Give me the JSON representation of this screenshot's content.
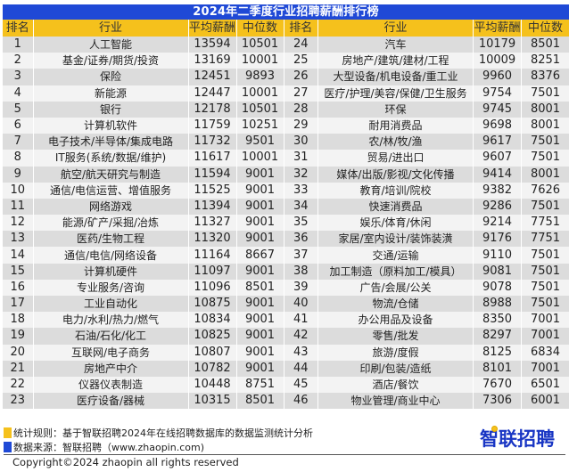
{
  "title": "2024年二季度行业招聘薪酬排行榜",
  "headers": {
    "rank": "排名",
    "industry": "行业",
    "avg_salary": "平均薪酬",
    "median": "中位数"
  },
  "colors": {
    "title_bg": "#1f49d6",
    "header_bg": "#f5c11c",
    "row_odd": "#dcdcdc",
    "row_even": "#f3f3f3",
    "logo": "#1936c4"
  },
  "left_rows": [
    {
      "rank": "1",
      "industry": "人工智能",
      "avg": "13594",
      "median": "10501"
    },
    {
      "rank": "2",
      "industry": "基金/证券/期货/投资",
      "avg": "13169",
      "median": "10001"
    },
    {
      "rank": "3",
      "industry": "保险",
      "avg": "12451",
      "median": "9893"
    },
    {
      "rank": "4",
      "industry": "新能源",
      "avg": "12447",
      "median": "10001"
    },
    {
      "rank": "5",
      "industry": "银行",
      "avg": "12178",
      "median": "10501"
    },
    {
      "rank": "6",
      "industry": "计算机软件",
      "avg": "11759",
      "median": "10251"
    },
    {
      "rank": "7",
      "industry": "电子技术/半导体/集成电路",
      "avg": "11732",
      "median": "9501"
    },
    {
      "rank": "8",
      "industry": "IT服务(系统/数据/维护)",
      "avg": "11617",
      "median": "10001"
    },
    {
      "rank": "9",
      "industry": "航空/航天研究与制造",
      "avg": "11594",
      "median": "9001"
    },
    {
      "rank": "10",
      "industry": "通信/电信运营、增值服务",
      "avg": "11525",
      "median": "9001"
    },
    {
      "rank": "11",
      "industry": "网络游戏",
      "avg": "11394",
      "median": "9001"
    },
    {
      "rank": "12",
      "industry": "能源/矿产/采掘/冶炼",
      "avg": "11327",
      "median": "9001"
    },
    {
      "rank": "13",
      "industry": "医药/生物工程",
      "avg": "11320",
      "median": "9001"
    },
    {
      "rank": "14",
      "industry": "通信/电信/网络设备",
      "avg": "11164",
      "median": "8667"
    },
    {
      "rank": "15",
      "industry": "计算机硬件",
      "avg": "11097",
      "median": "9001"
    },
    {
      "rank": "16",
      "industry": "专业服务/咨询",
      "avg": "11096",
      "median": "8501"
    },
    {
      "rank": "17",
      "industry": "工业自动化",
      "avg": "10875",
      "median": "9001"
    },
    {
      "rank": "18",
      "industry": "电力/水利/热力/燃气",
      "avg": "10834",
      "median": "9001"
    },
    {
      "rank": "19",
      "industry": "石油/石化/化工",
      "avg": "10825",
      "median": "9001"
    },
    {
      "rank": "20",
      "industry": "互联网/电子商务",
      "avg": "10807",
      "median": "9001"
    },
    {
      "rank": "21",
      "industry": "房地产中介",
      "avg": "10782",
      "median": "9001"
    },
    {
      "rank": "22",
      "industry": "仪器仪表制造",
      "avg": "10448",
      "median": "8751"
    },
    {
      "rank": "23",
      "industry": "医疗设备/器械",
      "avg": "10315",
      "median": "8501"
    }
  ],
  "right_rows": [
    {
      "rank": "24",
      "industry": "汽车",
      "avg": "10179",
      "median": "8501"
    },
    {
      "rank": "25",
      "industry": "房地产/建筑/建材/工程",
      "avg": "10009",
      "median": "8251"
    },
    {
      "rank": "26",
      "industry": "大型设备/机电设备/重工业",
      "avg": "9960",
      "median": "8376"
    },
    {
      "rank": "27",
      "industry": "医疗/护理/美容/保健/卫生服务",
      "avg": "9754",
      "median": "7501"
    },
    {
      "rank": "28",
      "industry": "环保",
      "avg": "9745",
      "median": "8001"
    },
    {
      "rank": "29",
      "industry": "耐用消费品",
      "avg": "9698",
      "median": "8001"
    },
    {
      "rank": "30",
      "industry": "农/林/牧/渔",
      "avg": "9617",
      "median": "7501"
    },
    {
      "rank": "31",
      "industry": "贸易/进出口",
      "avg": "9607",
      "median": "7501"
    },
    {
      "rank": "32",
      "industry": "媒体/出版/影视/文化传播",
      "avg": "9414",
      "median": "8001"
    },
    {
      "rank": "33",
      "industry": "教育/培训/院校",
      "avg": "9382",
      "median": "7626"
    },
    {
      "rank": "34",
      "industry": "快速消费品",
      "avg": "9286",
      "median": "7501"
    },
    {
      "rank": "35",
      "industry": "娱乐/体育/休闲",
      "avg": "9214",
      "median": "7751"
    },
    {
      "rank": "36",
      "industry": "家居/室内设计/装饰装潢",
      "avg": "9176",
      "median": "7751"
    },
    {
      "rank": "37",
      "industry": "交通/运输",
      "avg": "9110",
      "median": "7501"
    },
    {
      "rank": "38",
      "industry": "加工制造（原料加工/模具）",
      "avg": "9081",
      "median": "7501"
    },
    {
      "rank": "39",
      "industry": "广告/会展/公关",
      "avg": "9078",
      "median": "7501"
    },
    {
      "rank": "40",
      "industry": "物流/仓储",
      "avg": "8988",
      "median": "7501"
    },
    {
      "rank": "41",
      "industry": "办公用品及设备",
      "avg": "8350",
      "median": "7001"
    },
    {
      "rank": "42",
      "industry": "零售/批发",
      "avg": "8297",
      "median": "7001"
    },
    {
      "rank": "43",
      "industry": "旅游/度假",
      "avg": "8125",
      "median": "6834"
    },
    {
      "rank": "44",
      "industry": "印刷/包装/造纸",
      "avg": "8101",
      "median": "7001"
    },
    {
      "rank": "45",
      "industry": "酒店/餐饮",
      "avg": "7670",
      "median": "6501"
    },
    {
      "rank": "46",
      "industry": "物业管理/商业中心",
      "avg": "7306",
      "median": "6001"
    }
  ],
  "footer": {
    "rule_label": "统计规则：基于智联招聘2024年在线招聘数据库的数据监测统计分析",
    "source_label": "数据来源：智联招聘（www.zhaopin.com)",
    "logo_text": "智联招聘",
    "copyright": "Copyright©2024 zhaopin all rights reserved"
  }
}
